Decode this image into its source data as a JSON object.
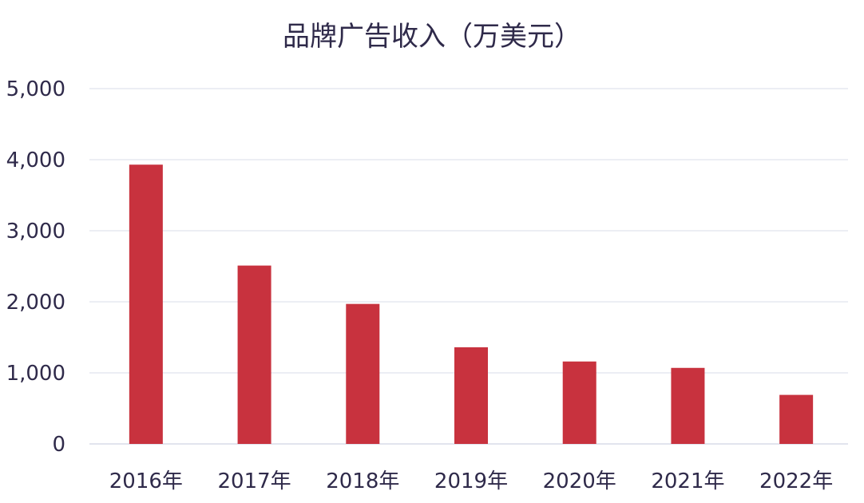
{
  "chart_data": {
    "type": "bar",
    "title": "品牌广告收入（万美元）",
    "categories": [
      "2016年",
      "2017年",
      "2018年",
      "2019年",
      "2020年",
      "2021年",
      "2022年"
    ],
    "series": [
      {
        "values": [
          3930,
          2510,
          1970,
          1360,
          1160,
          1070,
          690
        ]
      }
    ],
    "y_ticks": [
      "0",
      "1,000",
      "2,000",
      "3,000",
      "4,000",
      "5,000"
    ],
    "ylim": [
      0,
      5000
    ],
    "grid": true,
    "bar_color": "#c8323e",
    "grid_color": "#d9dce8",
    "text_color": "#2f2a4a"
  }
}
